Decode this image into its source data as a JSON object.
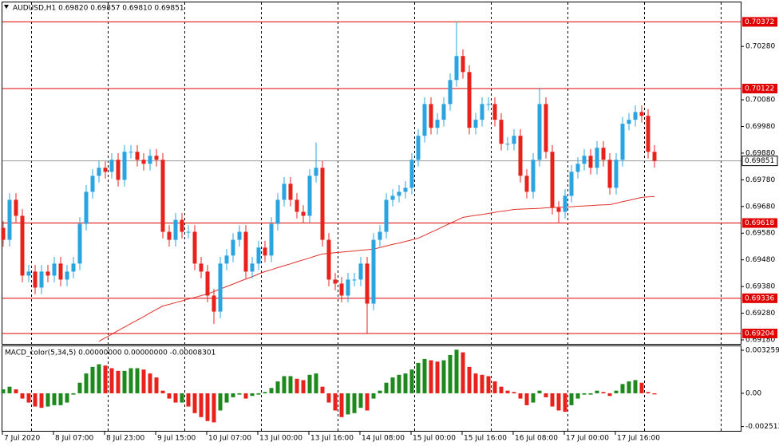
{
  "chart_data": {
    "type": "candlestick",
    "title": "AUDUSD,H1  0.69820 0.69857 0.69810 0.69851",
    "bull_color": "#2aa4e0",
    "bear_color": "#e8211d",
    "open": [
      0.696,
      0.69555,
      0.69705,
      0.69645,
      0.69421,
      0.69436,
      0.69376,
      0.69436,
      0.69421,
      0.69466,
      0.69406,
      0.69436,
      0.69466,
      0.69615,
      0.69735,
      0.69795,
      0.69825,
      0.6981,
      0.69855,
      0.6978,
      0.69885,
      0.69885,
      0.69855,
      0.6984,
      0.6987,
      0.69855,
      0.69585,
      0.69555,
      0.6963,
      0.69585,
      0.69585,
      0.69466,
      0.69436,
      0.69346,
      0.69286,
      0.69466,
      0.69496,
      0.69555,
      0.69585,
      0.69436,
      0.69466,
      0.69526,
      0.69496,
      0.69615,
      0.69705,
      0.69765,
      0.69705,
      0.6966,
      0.69645,
      0.69795,
      0.69825,
      0.69555,
      0.69406,
      0.69391,
      0.69346,
      0.69406,
      0.69406,
      0.69466,
      0.69316,
      0.69555,
      0.69585,
      0.69705,
      0.6972,
      0.69735,
      0.6975,
      0.69855,
      0.69945,
      0.70064,
      0.69975,
      0.70005,
      0.70064,
      0.70154,
      0.70244,
      0.70184,
      0.69975,
      0.70005,
      0.70064,
      0.70064,
      0.70005,
      0.69915,
      0.69915,
      0.69945,
      0.69795,
      0.69735,
      0.69855,
      0.70064,
      0.69885,
      0.69675,
      0.6966,
      0.6972,
      0.6981,
      0.6984,
      0.6987,
      0.69825,
      0.699,
      0.69855,
      0.6975,
      0.69855,
      0.6999,
      0.70005,
      0.70034,
      0.7002,
      0.69885
    ],
    "high": [
      0.69625,
      0.6973,
      0.6973,
      0.6967,
      0.69461,
      0.69461,
      0.69461,
      0.69461,
      0.69491,
      0.69491,
      0.69461,
      0.69491,
      0.6964,
      0.6976,
      0.6982,
      0.6985,
      0.6985,
      0.6988,
      0.6988,
      0.6991,
      0.6991,
      0.6991,
      0.6988,
      0.69895,
      0.69895,
      0.6988,
      0.6961,
      0.69655,
      0.69655,
      0.6961,
      0.6961,
      0.69491,
      0.69461,
      0.69371,
      0.69491,
      0.69521,
      0.6958,
      0.6961,
      0.6961,
      0.69491,
      0.69551,
      0.69551,
      0.6964,
      0.6973,
      0.6979,
      0.6979,
      0.6973,
      0.69685,
      0.6982,
      0.6992,
      0.6985,
      0.6958,
      0.69431,
      0.69416,
      0.69431,
      0.69431,
      0.69491,
      0.69491,
      0.6958,
      0.6961,
      0.6973,
      0.69745,
      0.6976,
      0.69775,
      0.6988,
      0.6997,
      0.70089,
      0.70089,
      0.7003,
      0.70089,
      0.70179,
      0.70372,
      0.70269,
      0.70209,
      0.7003,
      0.70089,
      0.70089,
      0.70089,
      0.7003,
      0.6994,
      0.6997,
      0.6997,
      0.6982,
      0.6988,
      0.70125,
      0.70089,
      0.6991,
      0.697,
      0.69745,
      0.69835,
      0.69865,
      0.69895,
      0.69895,
      0.69925,
      0.69925,
      0.6988,
      0.6988,
      0.70015,
      0.7003,
      0.70059,
      0.70059,
      0.70045,
      0.6991
    ],
    "low": [
      0.6953,
      0.6953,
      0.6962,
      0.69396,
      0.69396,
      0.69351,
      0.69351,
      0.69396,
      0.69396,
      0.69381,
      0.69381,
      0.69411,
      0.69441,
      0.6959,
      0.6971,
      0.6977,
      0.69785,
      0.69785,
      0.69755,
      0.69755,
      0.6986,
      0.6983,
      0.69815,
      0.69815,
      0.6983,
      0.6956,
      0.6953,
      0.6953,
      0.6956,
      0.6956,
      0.69441,
      0.69411,
      0.69321,
      0.6924,
      0.69261,
      0.69441,
      0.69471,
      0.6953,
      0.69411,
      0.69411,
      0.69441,
      0.69471,
      0.69471,
      0.6959,
      0.6968,
      0.6968,
      0.69635,
      0.6962,
      0.6962,
      0.6977,
      0.6953,
      0.69381,
      0.69366,
      0.69321,
      0.69321,
      0.69381,
      0.69381,
      0.69204,
      0.69291,
      0.6953,
      0.6956,
      0.6968,
      0.69695,
      0.6971,
      0.69725,
      0.6983,
      0.6992,
      0.6995,
      0.6995,
      0.6998,
      0.70039,
      0.70129,
      0.70159,
      0.6995,
      0.6995,
      0.6998,
      0.70039,
      0.6998,
      0.6989,
      0.6989,
      0.6989,
      0.6977,
      0.6971,
      0.6971,
      0.6983,
      0.6986,
      0.6965,
      0.6962,
      0.69635,
      0.69695,
      0.69785,
      0.69815,
      0.698,
      0.698,
      0.6983,
      0.69725,
      0.69725,
      0.6983,
      0.69965,
      0.6998,
      0.69995,
      0.6986,
      0.69826
    ],
    "close": [
      0.69555,
      0.69705,
      0.69645,
      0.69421,
      0.69436,
      0.69376,
      0.69436,
      0.69421,
      0.69466,
      0.69406,
      0.69436,
      0.69466,
      0.69615,
      0.69735,
      0.69795,
      0.69825,
      0.6981,
      0.69855,
      0.6978,
      0.69885,
      0.69885,
      0.69855,
      0.6984,
      0.6987,
      0.69855,
      0.69585,
      0.69555,
      0.6963,
      0.69585,
      0.69585,
      0.69466,
      0.69436,
      0.69346,
      0.69286,
      0.69466,
      0.69496,
      0.69555,
      0.69585,
      0.69436,
      0.69466,
      0.69526,
      0.69496,
      0.69615,
      0.69705,
      0.69765,
      0.69705,
      0.6966,
      0.69645,
      0.69795,
      0.69825,
      0.69555,
      0.69406,
      0.69391,
      0.69346,
      0.69406,
      0.69406,
      0.69466,
      0.69316,
      0.69555,
      0.69585,
      0.69705,
      0.6972,
      0.69735,
      0.6975,
      0.69855,
      0.69945,
      0.70064,
      0.69975,
      0.70005,
      0.70064,
      0.70154,
      0.70244,
      0.70184,
      0.69975,
      0.70005,
      0.70064,
      0.70064,
      0.70005,
      0.69915,
      0.69915,
      0.69945,
      0.69795,
      0.69735,
      0.69855,
      0.70064,
      0.69885,
      0.69675,
      0.6966,
      0.6972,
      0.6981,
      0.6984,
      0.6987,
      0.69825,
      0.699,
      0.69855,
      0.6975,
      0.69855,
      0.6999,
      0.70005,
      0.70034,
      0.7002,
      0.69885,
      0.69851
    ],
    "ma": {
      "color": "#e0302a",
      "values": [
        null,
        null,
        null,
        null,
        null,
        null,
        null,
        null,
        null,
        null,
        null,
        null,
        null,
        null,
        null,
        0.69175,
        0.69188,
        0.69201,
        0.69215,
        0.69228,
        0.69241,
        0.69254,
        0.69267,
        0.69281,
        0.69294,
        0.69307,
        0.69313,
        0.6932,
        0.69326,
        0.69333,
        0.69339,
        0.69346,
        0.69352,
        0.69361,
        0.69371,
        0.6938,
        0.69389,
        0.69399,
        0.69408,
        0.69417,
        0.69427,
        0.69436,
        0.69443,
        0.69451,
        0.69458,
        0.69465,
        0.69473,
        0.6948,
        0.69487,
        0.69495,
        0.69502,
        0.69504,
        0.69507,
        0.69509,
        0.69511,
        0.69513,
        0.69516,
        0.69518,
        0.6952,
        0.69526,
        0.69532,
        0.69538,
        0.69543,
        0.69549,
        0.69555,
        0.69561,
        0.69572,
        0.69583,
        0.69594,
        0.69606,
        0.69617,
        0.69628,
        0.69639,
        0.69643,
        0.69647,
        0.6965,
        0.69654,
        0.69658,
        0.69662,
        0.69665,
        0.69669,
        0.6967,
        0.69671,
        0.69672,
        0.69673,
        0.69675,
        0.69676,
        0.69677,
        0.69678,
        0.69679,
        0.69681,
        0.69682,
        0.69683,
        0.69685,
        0.69686,
        0.69687,
        0.69692,
        0.69698,
        0.69703,
        0.69709,
        0.69714,
        0.69716,
        0.69717
      ]
    },
    "ylim": [
      0.69165,
      0.70448
    ],
    "yticks": [
      {
        "value": 0.6918,
        "label": "0.69180"
      },
      {
        "value": 0.6928,
        "label": "0.69280"
      },
      {
        "value": 0.6938,
        "label": "0.69380"
      },
      {
        "value": 0.6948,
        "label": "0.69480"
      },
      {
        "value": 0.6958,
        "label": "0.69580"
      },
      {
        "value": 0.6968,
        "label": "0.69680"
      },
      {
        "value": 0.6978,
        "label": "0.69780"
      },
      {
        "value": 0.6988,
        "label": "0.69880"
      },
      {
        "value": 0.6998,
        "label": "0.69980"
      },
      {
        "value": 0.7008,
        "label": "0.70080"
      },
      {
        "value": 0.7028,
        "label": "0.70280"
      }
    ],
    "level_color": "#e00000",
    "levels": [
      0.70372,
      0.70122,
      0.69618,
      0.69336,
      0.69204
    ],
    "current_price": 0.69851,
    "time_labels": [
      "7 Jul 2020",
      "8 Jul 07:00",
      "8 Jul 23:00",
      "9 Jul 15:00",
      "10 Jul 07:00",
      "13 Jul 00:00",
      "13 Jul 16:00",
      "14 Jul 08:00",
      "15 Jul 00:00",
      "15 Jul 16:00",
      "16 Jul 08:00",
      "17 Jul 00:00",
      "17 Jul 16:00"
    ],
    "macd": {
      "title": "MACD_color(5,34,5) 0.00000000 0.00000000 -0.00008301",
      "up_color": "#1e8a1e",
      "down_color": "#e8211d",
      "values": [
        0.0003,
        0.0005,
        0.0003,
        -0.0004,
        -0.0007,
        -0.001,
        -0.0011,
        -0.001,
        -0.0009,
        -0.0009,
        -0.0007,
        -0.0001,
        0.0008,
        0.0015,
        0.002,
        0.0022,
        0.0021,
        0.0019,
        0.0017,
        0.0017,
        0.0019,
        0.0019,
        0.0018,
        0.0015,
        0.0012,
        0.0002,
        -0.0004,
        -0.0007,
        -0.0007,
        -0.001,
        -0.0015,
        -0.0018,
        -0.0021,
        -0.0022,
        -0.0013,
        -0.0007,
        -0.0003,
        -0.0001,
        -0.0004,
        -0.0002,
        -0.0001,
        0.0001,
        0.0004,
        0.0009,
        0.0013,
        0.0013,
        0.0011,
        0.001,
        0.0014,
        0.0015,
        0.0005,
        -0.0007,
        -0.0013,
        -0.0018,
        -0.0016,
        -0.0015,
        -0.0011,
        -0.0013,
        -0.0004,
        0.0002,
        0.0008,
        0.0012,
        0.0014,
        0.0015,
        0.0018,
        0.0023,
        0.0026,
        0.0025,
        0.0024,
        0.0025,
        0.0029,
        0.0033,
        0.0031,
        0.002,
        0.0015,
        0.0014,
        0.0013,
        0.0009,
        0.0005,
        0.0002,
        0.0001,
        -0.0004,
        -0.0009,
        -0.0007,
        0.0002,
        -0.0003,
        -0.001,
        -0.0013,
        -0.0014,
        -0.0009,
        -0.0004,
        -0.0001,
        -0.0001,
        0.0002,
        0.0001,
        -0.0002,
        0.0002,
        0.0007,
        0.0009,
        0.001,
        0.0008,
        0.0001,
        -8.301e-05
      ],
      "y2lim": [
        -0.00284,
        0.00362
      ],
      "y2ticks": [
        {
          "value": 0.003259,
          "label": "0.0032590"
        },
        {
          "value": 0,
          "label": "0.00"
        },
        {
          "value": -0.002513,
          "label": "-0.002513"
        }
      ]
    }
  }
}
